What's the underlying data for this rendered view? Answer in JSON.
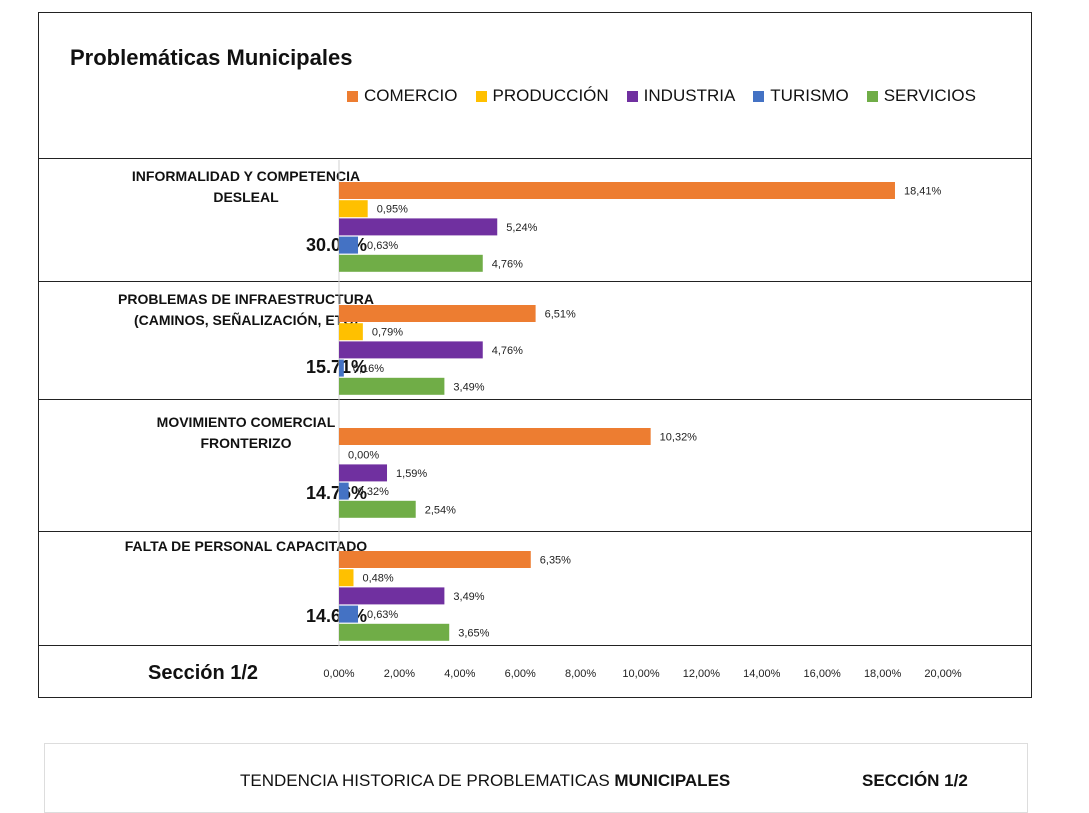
{
  "title": "Problemáticas Municipales",
  "legend": [
    {
      "name": "COMERCIO",
      "color": "#ED7D31"
    },
    {
      "name": "PRODUCCIÓN",
      "color": "#FFC000"
    },
    {
      "name": "INDUSTRIA",
      "color": "#7030A0"
    },
    {
      "name": "TURISMO",
      "color": "#4472C4"
    },
    {
      "name": "SERVICIOS",
      "color": "#70AD47"
    }
  ],
  "sections": [
    {
      "label_line1": "INFORMALIDAD Y COMPETENCIA",
      "label_line2": "DESLEAL",
      "total": "30.00%"
    },
    {
      "label_line1": "PROBLEMAS DE INFRAESTRUCTURA",
      "label_line2": "(CAMINOS, SEÑALIZACIÓN, ETC)",
      "total": "15.71%"
    },
    {
      "label_line1": "MOVIMIENTO COMERCIAL",
      "label_line2": "FRONTERIZO",
      "total": "14.76%"
    },
    {
      "label_line1": "FALTA DE PERSONAL CAPACITADO",
      "label_line2": "",
      "total": "14.60%"
    }
  ],
  "section_footer": "Sección 1/2",
  "footer": {
    "title_prefix": "TENDENCIA HISTORICA DE PROBLEMATICAS ",
    "title_bold": "MUNICIPALES",
    "section": "SECCIÓN 1/2"
  },
  "chart_data": {
    "type": "bar",
    "orientation": "horizontal",
    "title": "Problemáticas Municipales",
    "categories": [
      "INFORMALIDAD Y COMPETENCIA DESLEAL",
      "PROBLEMAS DE INFRAESTRUCTURA (CAMINOS, SEÑALIZACIÓN, ETC)",
      "MOVIMIENTO COMERCIAL FRONTERIZO",
      "FALTA DE PERSONAL CAPACITADO"
    ],
    "series": [
      {
        "name": "COMERCIO",
        "color": "#ED7D31",
        "values": [
          18.41,
          6.51,
          10.32,
          6.35
        ],
        "labels": [
          "18,41%",
          "6,51%",
          "10,32%",
          "6,35%"
        ]
      },
      {
        "name": "PRODUCCIÓN",
        "color": "#FFC000",
        "values": [
          0.95,
          0.79,
          0.0,
          0.48
        ],
        "labels": [
          "0,95%",
          "0,79%",
          "0,00%",
          "0,48%"
        ]
      },
      {
        "name": "INDUSTRIA",
        "color": "#7030A0",
        "values": [
          5.24,
          4.76,
          1.59,
          3.49
        ],
        "labels": [
          "5,24%",
          "4,76%",
          "1,59%",
          "3,49%"
        ]
      },
      {
        "name": "TURISMO",
        "color": "#4472C4",
        "values": [
          0.63,
          0.16,
          0.32,
          0.63
        ],
        "labels": [
          "0,63%",
          "0,16%",
          "0,32%",
          "0,63%"
        ]
      },
      {
        "name": "SERVICIOS",
        "color": "#70AD47",
        "values": [
          4.76,
          3.49,
          2.54,
          3.65
        ],
        "labels": [
          "4,76%",
          "3,49%",
          "2,54%",
          "3,65%"
        ]
      }
    ],
    "xlim": [
      0,
      20
    ],
    "xticks": [
      "0,00%",
      "2,00%",
      "4,00%",
      "6,00%",
      "8,00%",
      "10,00%",
      "12,00%",
      "14,00%",
      "16,00%",
      "18,00%",
      "20,00%"
    ],
    "legend_position": "top"
  }
}
